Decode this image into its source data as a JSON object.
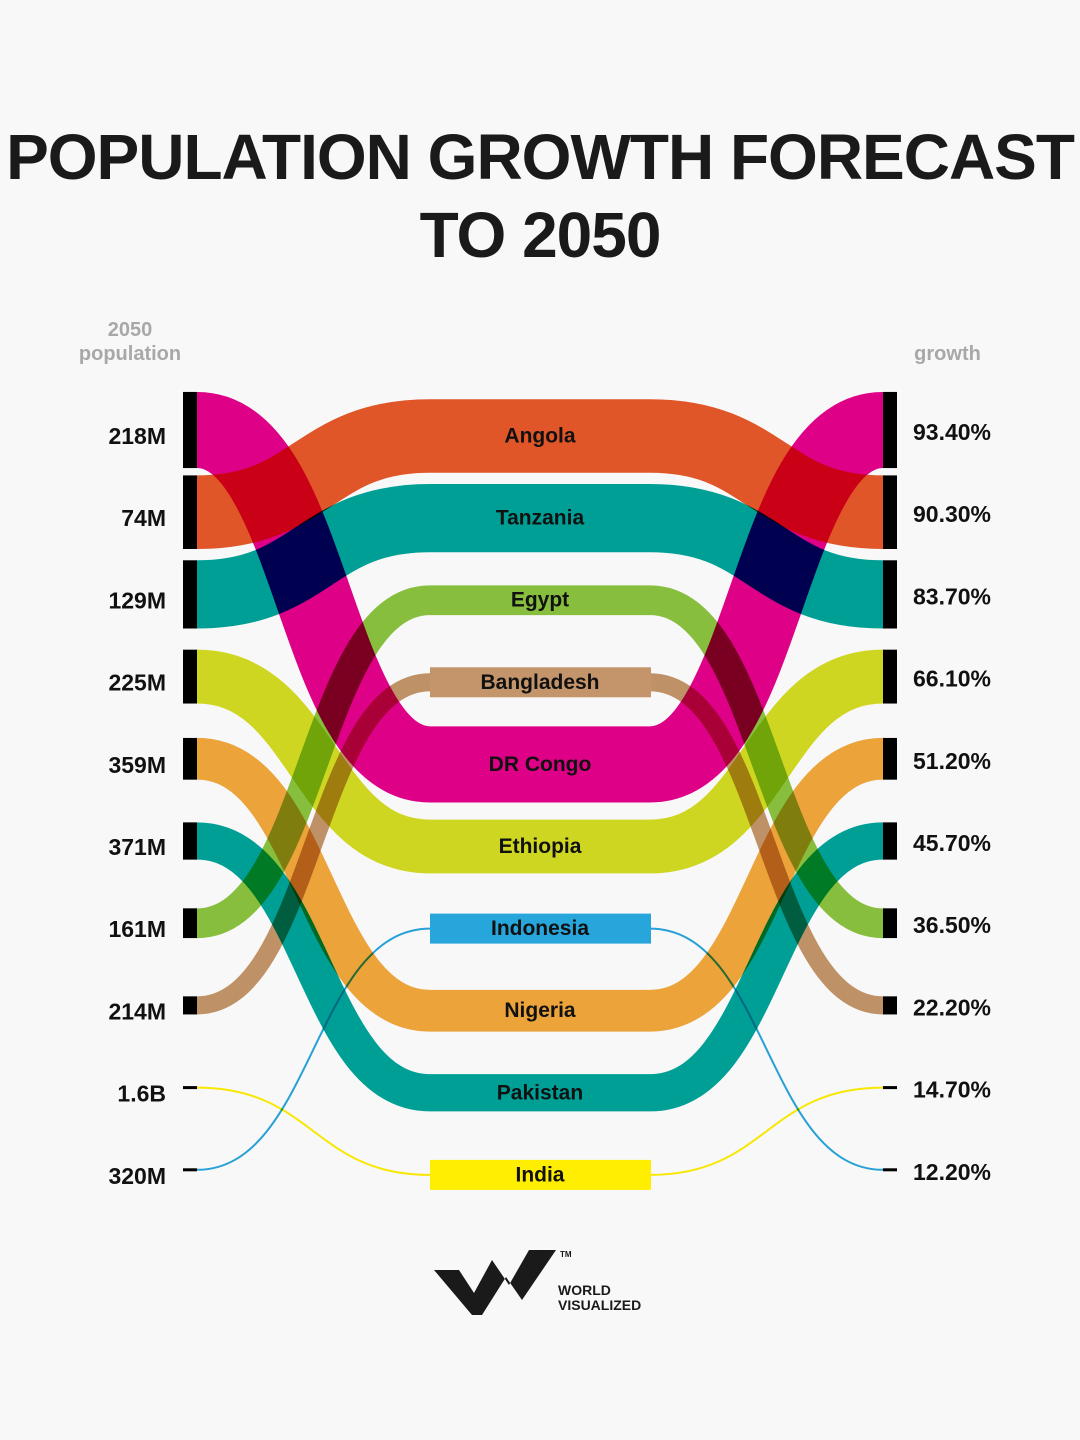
{
  "chart_data": {
    "type": "sankey-bump",
    "title": "POPULATION GROWTH FORECAST TO 2050",
    "left_header": "2050 population",
    "right_header": "growth",
    "series": [
      {
        "name": "DR Congo",
        "population": "218M",
        "growth": 93.4,
        "growth_label": "93.40%",
        "color": "#e5008a",
        "middle_rank": 5
      },
      {
        "name": "Angola",
        "population": "74M",
        "growth": 90.3,
        "growth_label": "90.30%",
        "color": "#e8582a",
        "middle_rank": 1
      },
      {
        "name": "Tanzania",
        "population": "129M",
        "growth": 83.7,
        "growth_label": "83.70%",
        "color": "#00a49a",
        "middle_rank": 2
      },
      {
        "name": "Ethiopia",
        "population": "225M",
        "growth": 66.1,
        "growth_label": "66.10%",
        "color": "#d4dc22",
        "middle_rank": 6
      },
      {
        "name": "Nigeria",
        "population": "359M",
        "growth": 51.2,
        "growth_label": "51.20%",
        "color": "#f2a83b",
        "middle_rank": 8
      },
      {
        "name": "Pakistan",
        "population": "371M",
        "growth": 45.7,
        "growth_label": "45.70%",
        "color": "#00a49a",
        "middle_rank": 9
      },
      {
        "name": "Egypt",
        "population": "161M",
        "growth": 36.5,
        "growth_label": "36.50%",
        "color": "#8bc43f",
        "middle_rank": 3
      },
      {
        "name": "Bangladesh",
        "population": "214M",
        "growth": 22.2,
        "growth_label": "22.20%",
        "color": "#c4956a",
        "middle_rank": 4,
        "boxed": true
      },
      {
        "name": "India",
        "population": "1.6B",
        "growth": 14.7,
        "growth_label": "14.70%",
        "color": "#ffee00",
        "middle_rank": 10,
        "boxed": true,
        "thin": true
      },
      {
        "name": "Indonesia",
        "population": "320M",
        "growth": 12.2,
        "growth_label": "12.20%",
        "color": "#27a6dc",
        "middle_rank": 7,
        "boxed": true,
        "thin": true
      }
    ]
  },
  "logo": {
    "name_line1": "WORLD",
    "name_line2": "VISUALIZED",
    "tm": "TM"
  }
}
